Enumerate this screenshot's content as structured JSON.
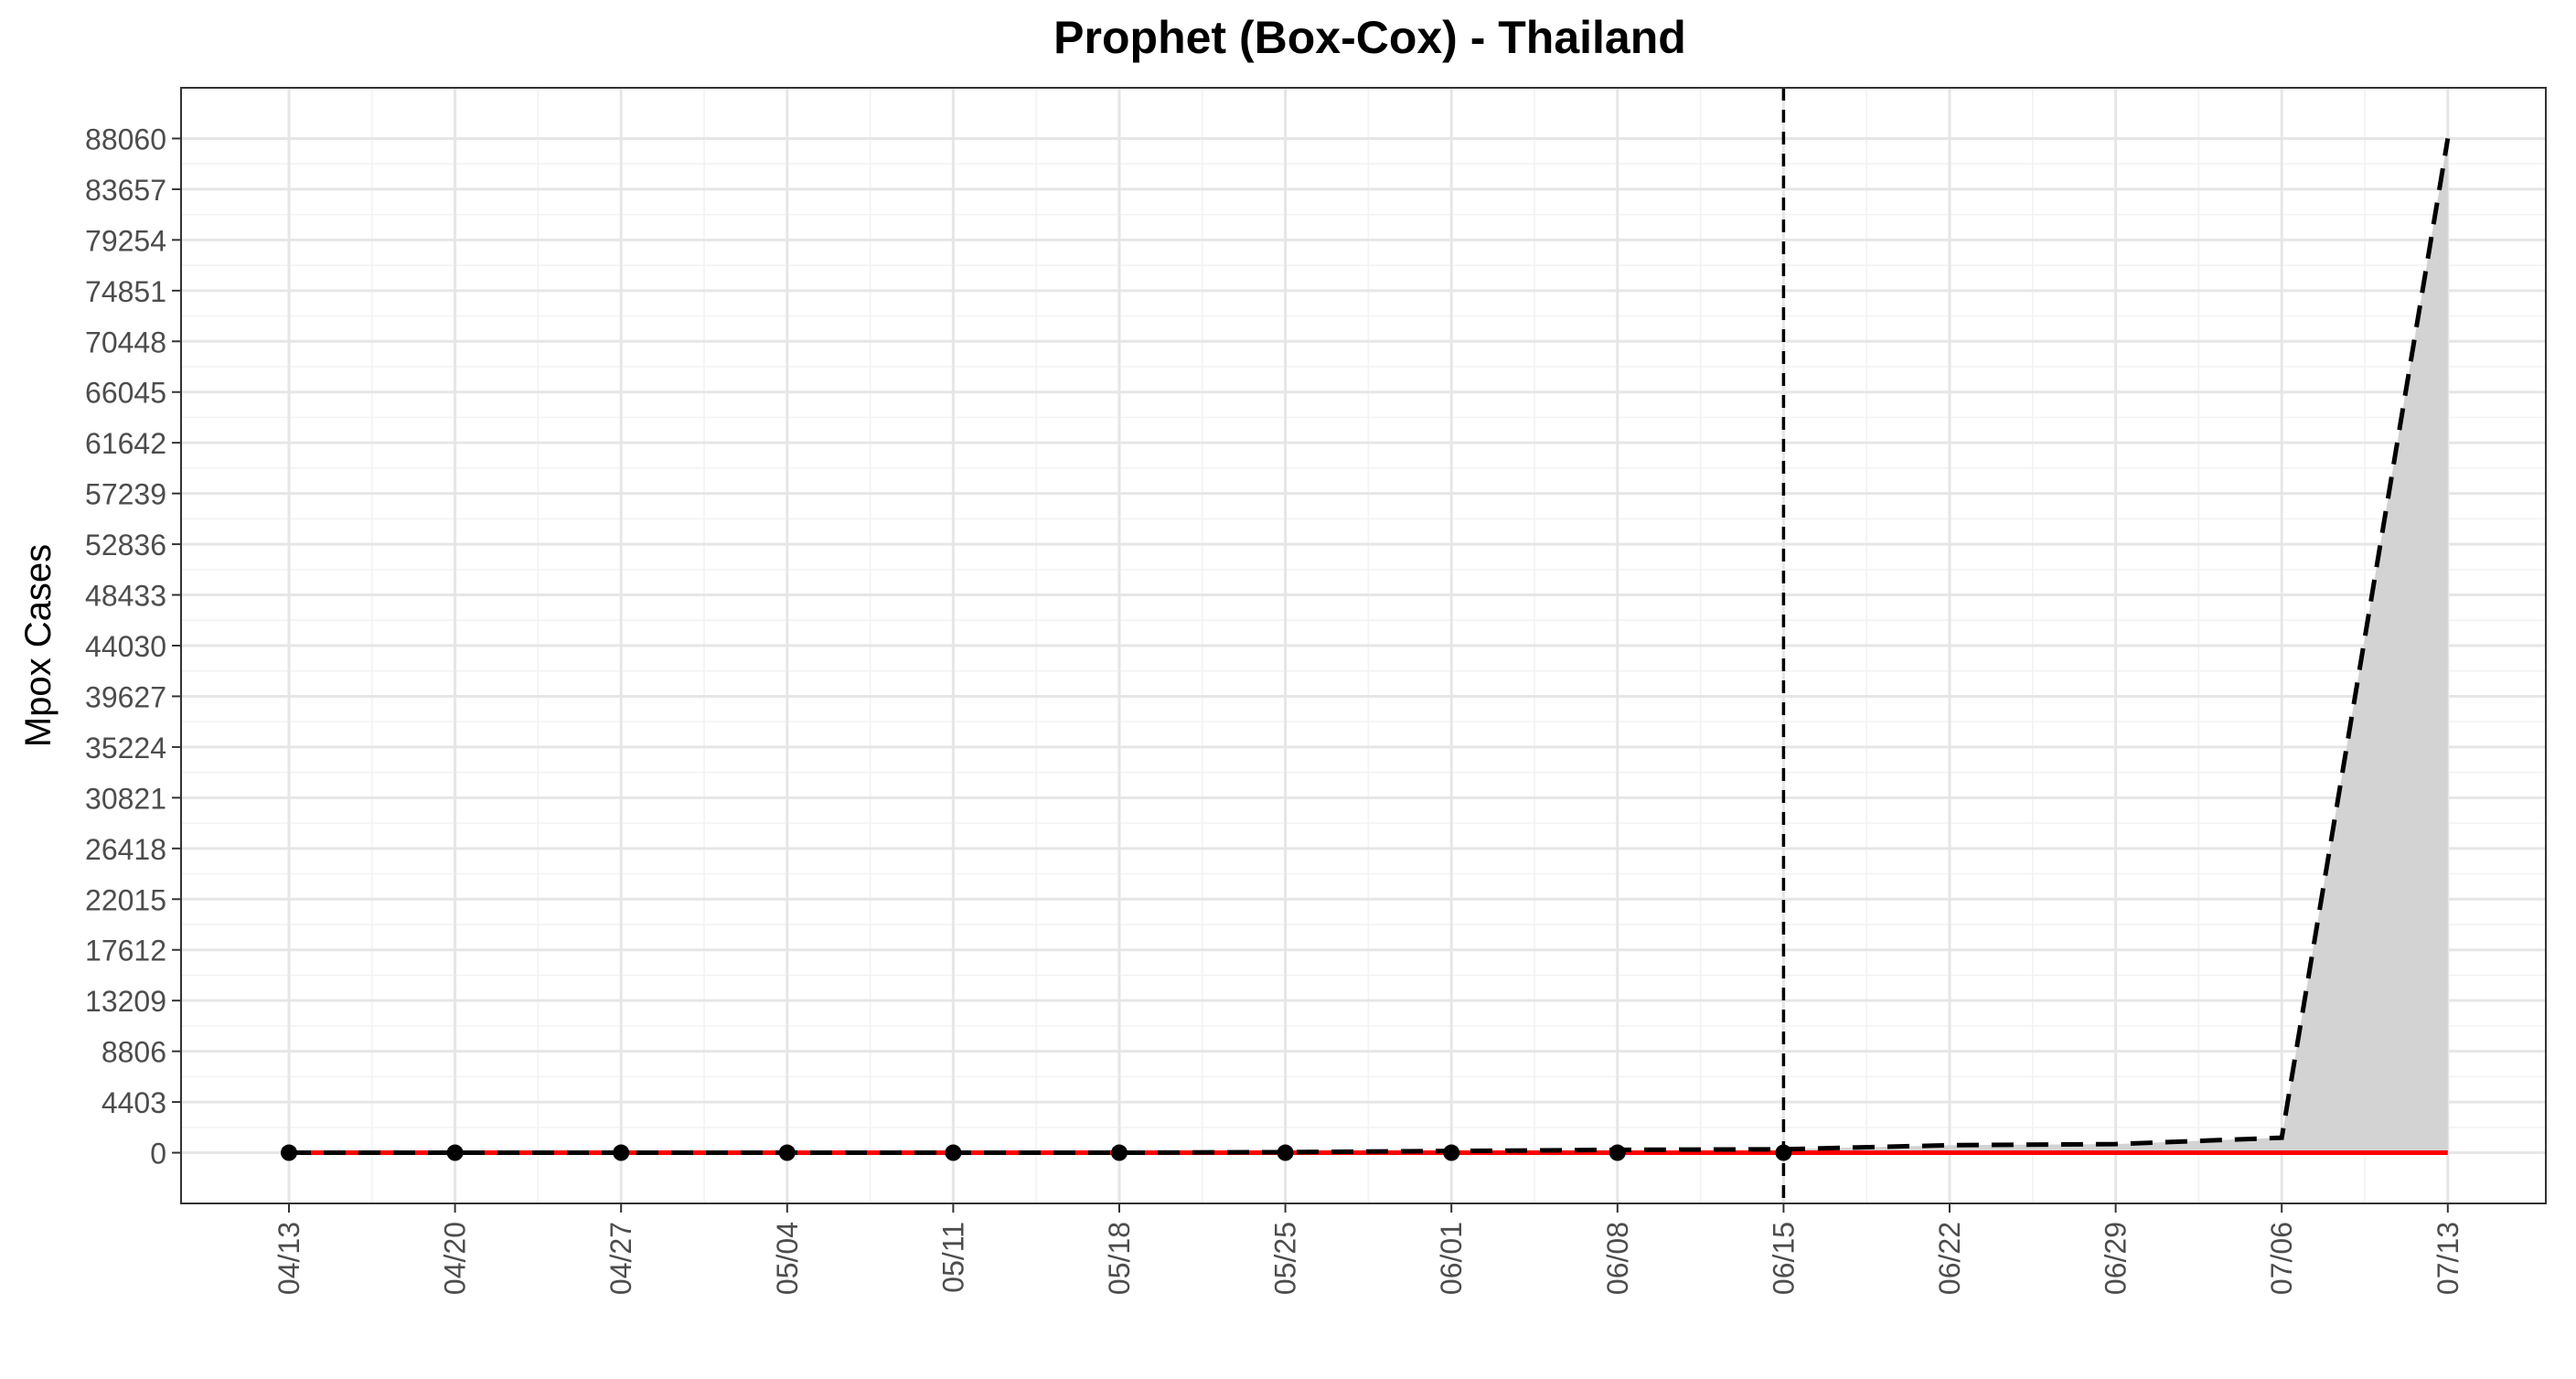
{
  "chart_data": {
    "type": "line",
    "title": "Prophet (Box-Cox) - Thailand",
    "xlabel": "",
    "ylabel": "Mpox Cases",
    "x_tick_labels": [
      "04/13",
      "04/20",
      "04/27",
      "05/04",
      "05/11",
      "05/18",
      "05/25",
      "06/01",
      "06/08",
      "06/15",
      "06/22",
      "06/29",
      "07/06",
      "07/13"
    ],
    "y_ticks": [
      0,
      4403,
      8806,
      13209,
      17612,
      22015,
      26418,
      30821,
      35224,
      39627,
      44030,
      48433,
      52836,
      57239,
      61642,
      66045,
      70448,
      74851,
      79254,
      83657,
      88060
    ],
    "ylim": [
      -4403,
      92463
    ],
    "forecast_start": "06/15",
    "grid": true,
    "legend": "none",
    "series": [
      {
        "kind": "observed_points",
        "x": [
          "04/13",
          "04/20",
          "04/27",
          "05/04",
          "05/11",
          "05/18",
          "05/25",
          "06/01",
          "06/08",
          "06/15"
        ],
        "values": [
          0,
          0,
          0,
          0,
          0,
          0,
          0,
          0,
          0,
          0
        ],
        "color": "#000000"
      },
      {
        "kind": "fitted_forecast_dashed",
        "x": [
          "04/13",
          "04/20",
          "04/27",
          "05/04",
          "05/11",
          "05/18",
          "05/25",
          "06/01",
          "06/08",
          "06/15",
          "06/22",
          "06/29",
          "07/06",
          "07/13"
        ],
        "values": [
          0,
          0,
          0,
          0,
          0,
          0,
          50,
          150,
          250,
          300,
          650,
          750,
          1300,
          88060
        ],
        "color": "#000000"
      },
      {
        "kind": "fitted_red",
        "x": [
          "04/13",
          "04/20",
          "04/27",
          "05/04",
          "05/11",
          "05/18",
          "05/25",
          "06/01",
          "06/08",
          "06/15",
          "06/22",
          "06/29",
          "07/06",
          "07/13"
        ],
        "values": [
          0,
          0,
          0,
          0,
          0,
          0,
          0,
          0,
          0,
          0,
          0,
          0,
          0,
          0
        ],
        "color": "#ff0000"
      }
    ],
    "interval": {
      "x": [
        "06/15",
        "06/22",
        "06/29",
        "07/06",
        "07/13"
      ],
      "lower": [
        0,
        0,
        0,
        0,
        0
      ],
      "upper": [
        300,
        650,
        750,
        1300,
        88060
      ],
      "color": "#d3d3d3"
    }
  }
}
